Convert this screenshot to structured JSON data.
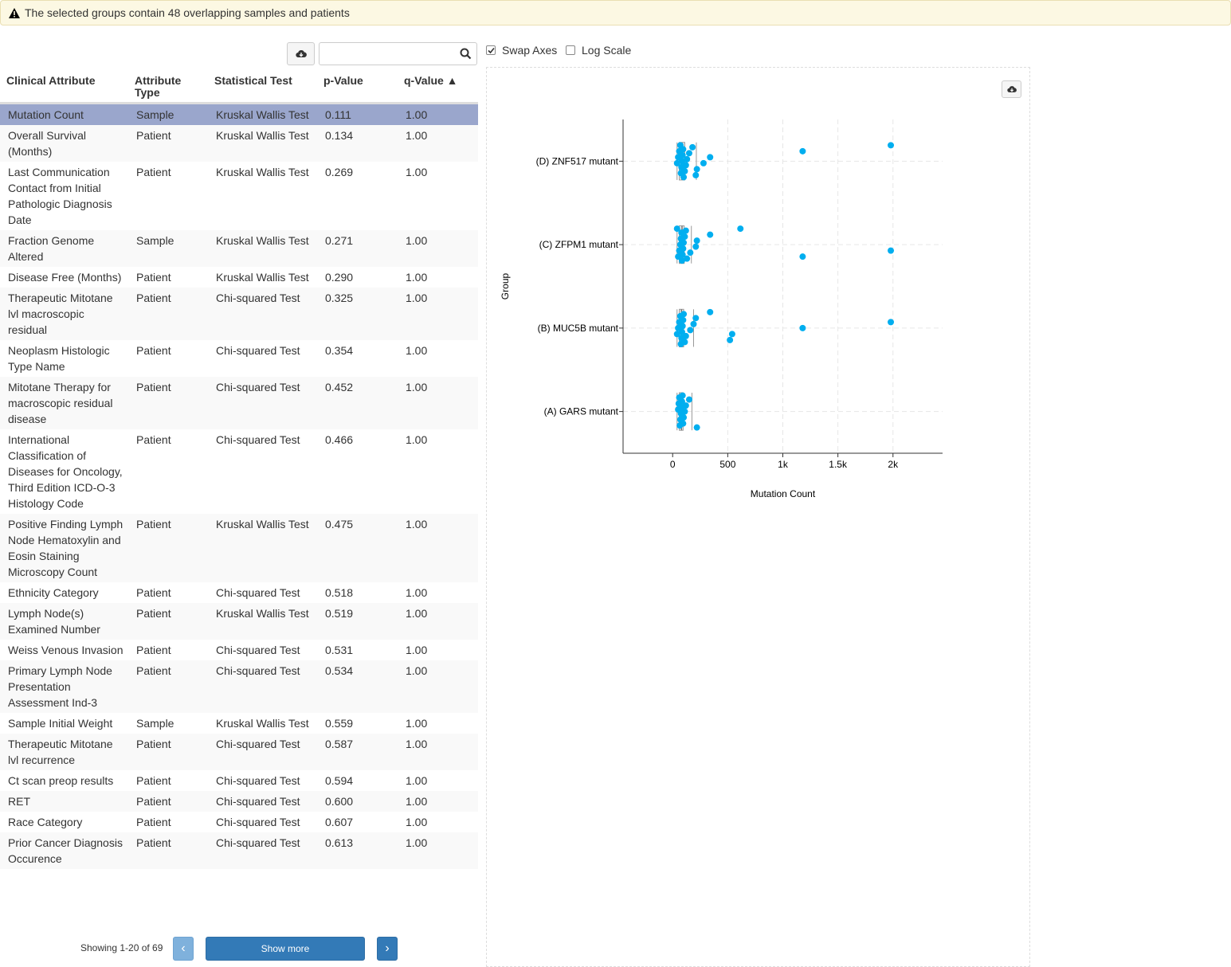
{
  "alert": {
    "icon": "warning-icon",
    "text": "The selected groups contain 48 overlapping samples and patients"
  },
  "toolbar": {
    "download_icon": "cloud-download-icon",
    "search_placeholder": "",
    "search_icon": "search-icon"
  },
  "table": {
    "headers": [
      "Clinical Attribute",
      "Attribute Type",
      "Statistical Test",
      "p-Value",
      "q-Value ▲"
    ],
    "selected_index": 0,
    "rows": [
      {
        "attribute": "Mutation Count",
        "type": "Sample",
        "test": "Kruskal Wallis Test",
        "p": "0.111",
        "q": "1.00"
      },
      {
        "attribute": "Overall Survival (Months)",
        "type": "Patient",
        "test": "Kruskal Wallis Test",
        "p": "0.134",
        "q": "1.00"
      },
      {
        "attribute": "Last Communication Contact from Initial Pathologic Diagnosis Date",
        "type": "Patient",
        "test": "Kruskal Wallis Test",
        "p": "0.269",
        "q": "1.00"
      },
      {
        "attribute": "Fraction Genome Altered",
        "type": "Sample",
        "test": "Kruskal Wallis Test",
        "p": "0.271",
        "q": "1.00"
      },
      {
        "attribute": "Disease Free (Months)",
        "type": "Patient",
        "test": "Kruskal Wallis Test",
        "p": "0.290",
        "q": "1.00"
      },
      {
        "attribute": "Therapeutic Mitotane lvl macroscopic residual",
        "type": "Patient",
        "test": "Chi-squared Test",
        "p": "0.325",
        "q": "1.00"
      },
      {
        "attribute": "Neoplasm Histologic Type Name",
        "type": "Patient",
        "test": "Chi-squared Test",
        "p": "0.354",
        "q": "1.00"
      },
      {
        "attribute": "Mitotane Therapy for macroscopic residual disease",
        "type": "Patient",
        "test": "Chi-squared Test",
        "p": "0.452",
        "q": "1.00"
      },
      {
        "attribute": "International Classification of Diseases for Oncology, Third Edition ICD-O-3 Histology Code",
        "type": "Patient",
        "test": "Chi-squared Test",
        "p": "0.466",
        "q": "1.00"
      },
      {
        "attribute": "Positive Finding Lymph Node Hematoxylin and Eosin Staining Microscopy Count",
        "type": "Patient",
        "test": "Kruskal Wallis Test",
        "p": "0.475",
        "q": "1.00"
      },
      {
        "attribute": "Ethnicity Category",
        "type": "Patient",
        "test": "Chi-squared Test",
        "p": "0.518",
        "q": "1.00"
      },
      {
        "attribute": "Lymph Node(s) Examined Number",
        "type": "Patient",
        "test": "Kruskal Wallis Test",
        "p": "0.519",
        "q": "1.00"
      },
      {
        "attribute": "Weiss Venous Invasion",
        "type": "Patient",
        "test": "Chi-squared Test",
        "p": "0.531",
        "q": "1.00"
      },
      {
        "attribute": "Primary Lymph Node Presentation Assessment Ind-3",
        "type": "Patient",
        "test": "Chi-squared Test",
        "p": "0.534",
        "q": "1.00"
      },
      {
        "attribute": "Sample Initial Weight",
        "type": "Sample",
        "test": "Kruskal Wallis Test",
        "p": "0.559",
        "q": "1.00"
      },
      {
        "attribute": "Therapeutic Mitotane lvl recurrence",
        "type": "Patient",
        "test": "Chi-squared Test",
        "p": "0.587",
        "q": "1.00"
      },
      {
        "attribute": "Ct scan preop results",
        "type": "Patient",
        "test": "Chi-squared Test",
        "p": "0.594",
        "q": "1.00"
      },
      {
        "attribute": "RET",
        "type": "Patient",
        "test": "Chi-squared Test",
        "p": "0.600",
        "q": "1.00"
      },
      {
        "attribute": "Race Category",
        "type": "Patient",
        "test": "Chi-squared Test",
        "p": "0.607",
        "q": "1.00"
      },
      {
        "attribute": "Prior Cancer Diagnosis Occurence",
        "type": "Patient",
        "test": "Chi-squared Test",
        "p": "0.613",
        "q": "1.00"
      }
    ]
  },
  "pager": {
    "showing": "Showing 1-20 of 69",
    "prev": "‹",
    "show_more": "Show more",
    "next": "›"
  },
  "options": {
    "swap_axes": {
      "label": "Swap Axes",
      "checked": true
    },
    "log_scale": {
      "label": "Log Scale",
      "checked": false
    }
  },
  "colors": {
    "selected_row": "#9aa6cc",
    "point": "#00aeef",
    "primary_button": "#337ab7",
    "alert_bg": "#fcf8e3"
  },
  "chart_data": {
    "type": "scatter",
    "title": "",
    "xlabel": "Mutation Count",
    "ylabel": "Group",
    "xlim": [
      -450,
      2450
    ],
    "xticks": [
      0,
      500,
      1000,
      1500,
      2000
    ],
    "xtick_labels": [
      "0",
      "500",
      "1k",
      "1.5k",
      "2k"
    ],
    "categories": [
      "(D) ZNF517 mutant",
      "(C) ZFPM1 mutant",
      "(B) MUC5B mutant",
      "(A) GARS mutant"
    ],
    "grid": true,
    "boxplots": [
      {
        "group": "(D) ZNF517 mutant",
        "min": 40,
        "q1": 60,
        "median": 85,
        "q3": 110,
        "max": 215
      },
      {
        "group": "(C) ZFPM1 mutant",
        "min": 40,
        "q1": 60,
        "median": 85,
        "q3": 105,
        "max": 170
      },
      {
        "group": "(B) MUC5B mutant",
        "min": 40,
        "q1": 60,
        "median": 80,
        "q3": 100,
        "max": 190
      },
      {
        "group": "(A) GARS mutant",
        "min": 40,
        "q1": 60,
        "median": 80,
        "q3": 95,
        "max": 175
      }
    ],
    "series": [
      {
        "group": "(D) ZNF517 mutant",
        "values": [
          1980,
          1180,
          340,
          280,
          220,
          210,
          180,
          150,
          130,
          120,
          110,
          100,
          95,
          90,
          85,
          80,
          75,
          70,
          60,
          50,
          40
        ]
      },
      {
        "group": "(C) ZFPM1 mutant",
        "values": [
          1980,
          1180,
          615,
          340,
          220,
          210,
          160,
          130,
          120,
          110,
          100,
          95,
          90,
          85,
          80,
          75,
          70,
          60,
          50,
          40
        ]
      },
      {
        "group": "(B) MUC5B mutant",
        "values": [
          1980,
          1180,
          540,
          520,
          340,
          210,
          190,
          160,
          120,
          110,
          100,
          95,
          90,
          85,
          80,
          75,
          70,
          60,
          50,
          40
        ]
      },
      {
        "group": "(A) GARS mutant",
        "values": [
          220,
          150,
          120,
          110,
          100,
          95,
          90,
          85,
          80,
          75,
          70,
          65,
          60,
          55,
          50
        ]
      }
    ]
  }
}
